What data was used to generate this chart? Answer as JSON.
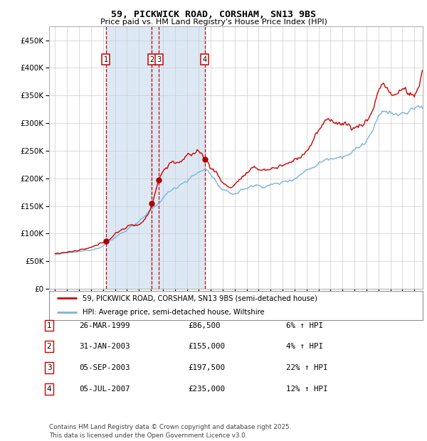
{
  "title": "59, PICKWICK ROAD, CORSHAM, SN13 9BS",
  "subtitle": "Price paid vs. HM Land Registry's House Price Index (HPI)",
  "background_color": "#ffffff",
  "plot_bg_color": "#ffffff",
  "grid_color": "#cccccc",
  "shaded_region_color": "#dce9f5",
  "sale_dates_num": [
    1999.23,
    2003.08,
    2003.67,
    2007.51
  ],
  "sale_prices": [
    86500,
    155000,
    197500,
    235000
  ],
  "sale_labels": [
    "1",
    "2",
    "3",
    "4"
  ],
  "sale_dates_str": [
    "26-MAR-1999",
    "31-JAN-2003",
    "05-SEP-2003",
    "05-JUL-2007"
  ],
  "sale_pct_str": [
    "6% ↑ HPI",
    "4% ↑ HPI",
    "22% ↑ HPI",
    "12% ↑ HPI"
  ],
  "sale_price_str": [
    "£86,500",
    "£155,000",
    "£197,500",
    "£235,000"
  ],
  "hpi_line_color": "#7ab4d8",
  "price_line_color": "#cc0000",
  "marker_color": "#aa0000",
  "vline_color": "#cc0000",
  "label_box_color": "#cc0000",
  "ylim": [
    0,
    475000
  ],
  "yticks": [
    0,
    50000,
    100000,
    150000,
    200000,
    250000,
    300000,
    350000,
    400000,
    450000
  ],
  "xlim_start": 1994.5,
  "xlim_end": 2025.7,
  "footer": "Contains HM Land Registry data © Crown copyright and database right 2025.\nThis data is licensed under the Open Government Licence v3.0."
}
